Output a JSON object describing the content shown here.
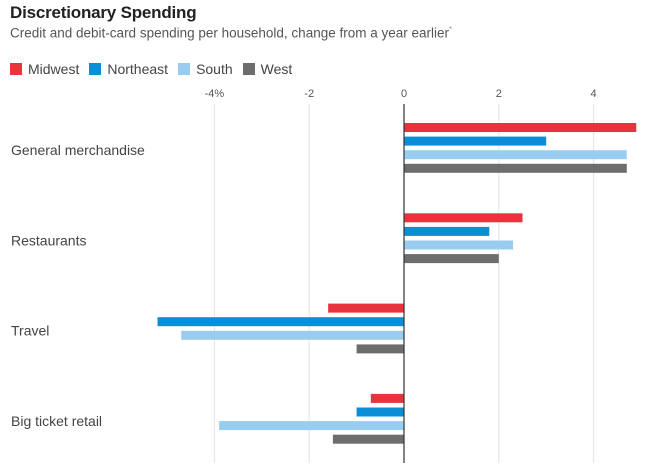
{
  "chart_data": {
    "type": "bar",
    "orientation": "horizontal",
    "title": "Discretionary Spending",
    "subtitle": "Credit and debit-card spending per household, change from a year earlier",
    "footnote_marker": "*",
    "xlabel": "",
    "ylabel": "",
    "xlim": [
      -5.5,
      4.9
    ],
    "xticks": [
      -4,
      -2,
      0,
      2,
      4
    ],
    "xtick_labels": [
      "-4%",
      "-2",
      "0",
      "2",
      "4"
    ],
    "grid": true,
    "legend_position": "top-left",
    "categories": [
      "General merchandise",
      "Restaurants",
      "Travel",
      "Big ticket retail"
    ],
    "series": [
      {
        "name": "Midwest",
        "color": "#e8323c",
        "values": [
          4.9,
          2.5,
          -1.6,
          -0.7
        ]
      },
      {
        "name": "Northeast",
        "color": "#0a8fd6",
        "values": [
          3.0,
          1.8,
          -5.2,
          -1.0
        ]
      },
      {
        "name": "South",
        "color": "#99cdf0",
        "values": [
          4.7,
          2.3,
          -4.7,
          -3.9
        ]
      },
      {
        "name": "West",
        "color": "#6d6d6d",
        "values": [
          4.7,
          2.0,
          -1.0,
          -1.5
        ]
      }
    ]
  }
}
